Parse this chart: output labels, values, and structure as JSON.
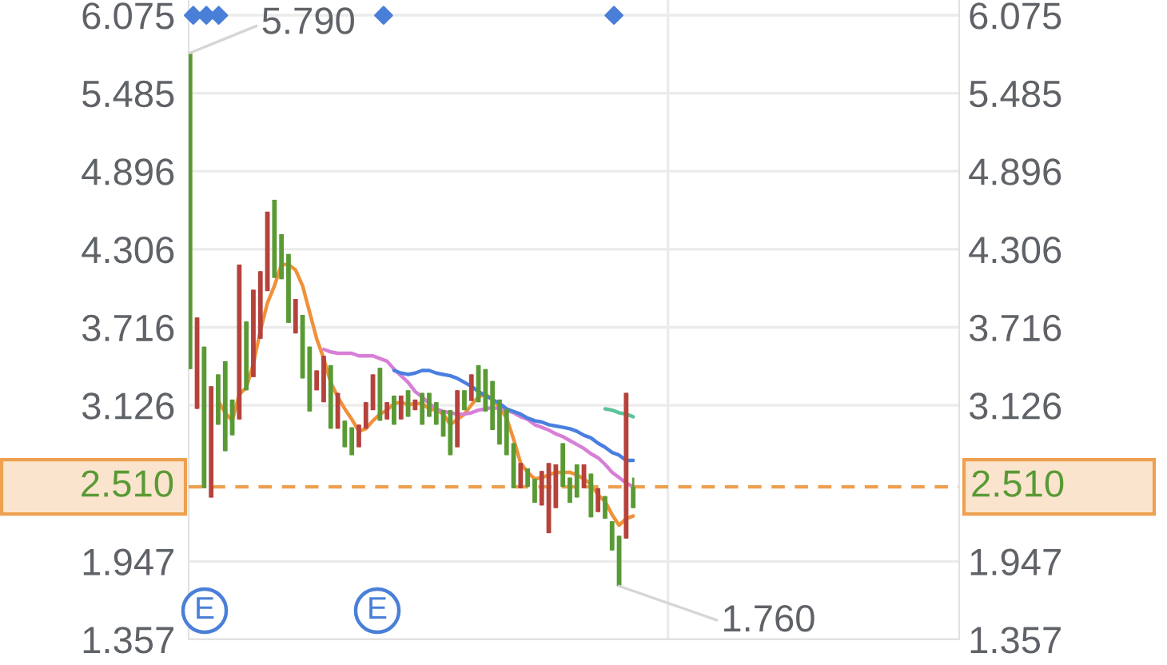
{
  "chart_data": {
    "type": "candlestick",
    "categories": [
      null,
      null,
      null,
      null,
      null,
      null,
      null,
      null,
      null,
      null,
      null,
      null,
      null,
      null,
      null,
      null,
      null,
      null,
      null,
      null,
      null,
      null,
      null,
      null,
      null,
      null,
      null,
      null,
      null,
      null,
      null,
      null,
      null,
      null,
      null,
      null,
      null,
      null,
      null,
      null,
      null,
      null,
      null,
      null,
      null,
      null,
      null,
      null,
      null,
      null,
      null,
      null,
      null,
      null,
      null,
      null,
      null,
      null,
      null,
      null,
      null,
      null,
      null,
      null
    ],
    "ohlc": [
      [
        3.4,
        5.79,
        3.4,
        5.79
      ],
      [
        3.79,
        3.79,
        3.1,
        3.1
      ],
      [
        2.5,
        3.57,
        2.5,
        3.57
      ],
      [
        3.27,
        3.27,
        2.43,
        2.43
      ],
      [
        2.98,
        3.36,
        2.98,
        3.36
      ],
      [
        2.78,
        3.46,
        2.78,
        3.46
      ],
      [
        2.9,
        3.17,
        2.9,
        3.17
      ],
      [
        4.19,
        4.19,
        3.02,
        3.02
      ],
      [
        3.24,
        3.76,
        3.24,
        3.76
      ],
      [
        4.0,
        4.0,
        3.34,
        3.34
      ],
      [
        4.14,
        4.14,
        3.63,
        3.63
      ],
      [
        4.59,
        4.59,
        3.99,
        3.99
      ],
      [
        4.09,
        4.68,
        4.09,
        4.68
      ],
      [
        4.08,
        4.42,
        4.08,
        4.42
      ],
      [
        3.75,
        4.27,
        3.75,
        4.27
      ],
      [
        3.93,
        3.93,
        3.67,
        3.67
      ],
      [
        3.33,
        3.81,
        3.33,
        3.81
      ],
      [
        3.08,
        3.57,
        3.08,
        3.57
      ],
      [
        3.39,
        3.39,
        3.24,
        3.24
      ],
      [
        3.5,
        3.5,
        3.15,
        3.15
      ],
      [
        2.95,
        3.43,
        2.95,
        3.43
      ],
      [
        3.22,
        3.22,
        2.95,
        2.95
      ],
      [
        2.81,
        3.01,
        2.81,
        3.01
      ],
      [
        2.75,
        2.96,
        2.75,
        2.96
      ],
      [
        2.98,
        2.98,
        2.81,
        2.81
      ],
      [
        3.15,
        3.15,
        2.95,
        2.95
      ],
      [
        3.36,
        3.36,
        3.09,
        3.09
      ],
      [
        3.01,
        3.41,
        3.01,
        3.41
      ],
      [
        3.15,
        3.15,
        3.02,
        3.02
      ],
      [
        2.98,
        3.2,
        2.98,
        3.2
      ],
      [
        3.2,
        3.2,
        3.02,
        3.02
      ],
      [
        3.04,
        3.24,
        3.04,
        3.24
      ],
      [
        3.17,
        3.17,
        3.09,
        3.09
      ],
      [
        2.98,
        3.22,
        2.98,
        3.22
      ],
      [
        3.04,
        3.22,
        3.04,
        3.22
      ],
      [
        2.98,
        3.15,
        2.98,
        3.15
      ],
      [
        2.89,
        3.09,
        2.89,
        3.09
      ],
      [
        2.75,
        3.09,
        2.75,
        3.09
      ],
      [
        3.24,
        3.24,
        2.81,
        2.81
      ],
      [
        3.09,
        3.24,
        3.09,
        3.24
      ],
      [
        3.36,
        3.36,
        3.16,
        3.16
      ],
      [
        3.15,
        3.43,
        3.15,
        3.43
      ],
      [
        3.08,
        3.4,
        3.08,
        3.4
      ],
      [
        2.94,
        3.31,
        2.94,
        3.31
      ],
      [
        2.83,
        3.17,
        2.83,
        3.17
      ],
      [
        2.75,
        3.1,
        2.75,
        3.1
      ],
      [
        2.5,
        2.84,
        2.5,
        2.84
      ],
      [
        2.69,
        2.69,
        2.5,
        2.5
      ],
      [
        2.51,
        2.65,
        2.51,
        2.65
      ],
      [
        2.39,
        2.57,
        2.39,
        2.57
      ],
      [
        2.63,
        2.63,
        2.37,
        2.37
      ],
      [
        2.69,
        2.69,
        2.16,
        2.16
      ],
      [
        2.68,
        2.68,
        2.35,
        2.35
      ],
      [
        2.51,
        2.84,
        2.51,
        2.84
      ],
      [
        2.39,
        2.58,
        2.39,
        2.58
      ],
      [
        2.43,
        2.68,
        2.43,
        2.68
      ],
      [
        2.68,
        2.68,
        2.5,
        2.5
      ],
      [
        2.28,
        2.61,
        2.28,
        2.61
      ],
      [
        2.5,
        2.5,
        2.32,
        2.32
      ],
      [
        2.27,
        2.44,
        2.27,
        2.44
      ],
      [
        2.03,
        2.25,
        2.03,
        2.25
      ],
      [
        1.76,
        2.14,
        1.76,
        2.14
      ],
      [
        3.22,
        3.22,
        2.12,
        2.12
      ],
      [
        2.35,
        2.58,
        2.35,
        2.51
      ]
    ],
    "colors": [
      "#5a9a35",
      "#b5423b",
      "#5a9a35",
      "#b5423b",
      "#5a9a35",
      "#5a9a35",
      "#5a9a35",
      "#b5423b",
      "#5a9a35",
      "#b5423b",
      "#b5423b",
      "#b5423b",
      "#5a9a35",
      "#5a9a35",
      "#5a9a35",
      "#b5423b",
      "#5a9a35",
      "#5a9a35",
      "#b5423b",
      "#b5423b",
      "#5a9a35",
      "#b5423b",
      "#5a9a35",
      "#5a9a35",
      "#b5423b",
      "#b5423b",
      "#b5423b",
      "#5a9a35",
      "#b5423b",
      "#5a9a35",
      "#b5423b",
      "#5a9a35",
      "#b5423b",
      "#5a9a35",
      "#5a9a35",
      "#5a9a35",
      "#5a9a35",
      "#5a9a35",
      "#b5423b",
      "#5a9a35",
      "#b5423b",
      "#5a9a35",
      "#5a9a35",
      "#5a9a35",
      "#5a9a35",
      "#5a9a35",
      "#5a9a35",
      "#b5423b",
      "#5a9a35",
      "#5a9a35",
      "#b5423b",
      "#b5423b",
      "#b5423b",
      "#5a9a35",
      "#5a9a35",
      "#5a9a35",
      "#b5423b",
      "#5a9a35",
      "#b5423b",
      "#5a9a35",
      "#5a9a35",
      "#5a9a35",
      "#b5423b",
      "#5a9a35"
    ],
    "series": [
      {
        "type": "line",
        "color": "#f0913a",
        "values": [
          null,
          null,
          null,
          null,
          3.16,
          3.07,
          3.01,
          3.21,
          3.26,
          3.44,
          3.69,
          3.9,
          4.03,
          4.19,
          4.19,
          4.15,
          4.03,
          3.83,
          3.63,
          3.48,
          3.3,
          3.19,
          3.1,
          3.02,
          2.93,
          2.95,
          3.01,
          3.06,
          3.09,
          3.14,
          3.15,
          3.13,
          3.14,
          3.14,
          3.1,
          3.09,
          3.06,
          2.98,
          3.02,
          3.06,
          3.13,
          3.19,
          3.21,
          3.17,
          3.11,
          3.03,
          2.87,
          2.69,
          2.62,
          2.57,
          2.58,
          2.6,
          2.62,
          2.62,
          2.62,
          2.6,
          2.57,
          2.53,
          2.45,
          2.4,
          2.3,
          2.22,
          2.27,
          2.29
        ]
      },
      {
        "type": "line",
        "color": "#d77fd6",
        "values": [
          null,
          null,
          null,
          null,
          null,
          null,
          null,
          null,
          null,
          null,
          null,
          null,
          null,
          null,
          null,
          null,
          null,
          null,
          null,
          3.55,
          3.53,
          3.52,
          3.52,
          3.52,
          3.5,
          3.5,
          3.5,
          3.48,
          3.46,
          3.4,
          3.35,
          3.3,
          3.23,
          3.19,
          3.14,
          3.1,
          3.08,
          3.07,
          3.06,
          3.06,
          3.07,
          3.09,
          3.1,
          3.11,
          3.1,
          3.09,
          3.07,
          3.04,
          3.02,
          2.98,
          2.96,
          2.94,
          2.91,
          2.89,
          2.86,
          2.83,
          2.8,
          2.76,
          2.73,
          2.68,
          2.62,
          2.58,
          2.54,
          2.51
        ]
      },
      {
        "type": "line",
        "color": "#4a7fe0",
        "values": [
          null,
          null,
          null,
          null,
          null,
          null,
          null,
          null,
          null,
          null,
          null,
          null,
          null,
          null,
          null,
          null,
          null,
          null,
          null,
          null,
          null,
          null,
          null,
          null,
          null,
          null,
          null,
          null,
          null,
          3.39,
          3.37,
          3.36,
          3.37,
          3.39,
          3.39,
          3.37,
          3.36,
          3.35,
          3.33,
          3.3,
          3.27,
          3.23,
          3.2,
          3.17,
          3.14,
          3.1,
          3.08,
          3.06,
          3.03,
          3.01,
          3.0,
          2.98,
          2.97,
          2.96,
          2.95,
          2.93,
          2.9,
          2.88,
          2.84,
          2.81,
          2.77,
          2.75,
          2.71,
          2.71
        ]
      },
      {
        "type": "line",
        "color": "#5cc49a",
        "values": [
          null,
          null,
          null,
          null,
          null,
          null,
          null,
          null,
          null,
          null,
          null,
          null,
          null,
          null,
          null,
          null,
          null,
          null,
          null,
          null,
          null,
          null,
          null,
          null,
          null,
          null,
          null,
          null,
          null,
          null,
          null,
          null,
          null,
          null,
          null,
          null,
          null,
          null,
          null,
          null,
          null,
          null,
          null,
          null,
          null,
          null,
          null,
          null,
          null,
          null,
          null,
          null,
          null,
          null,
          null,
          null,
          null,
          null,
          null,
          3.1,
          3.09,
          3.07,
          3.06,
          3.04
        ]
      }
    ],
    "ylim": [
      1.357,
      6.19
    ],
    "yticks": [
      1.357,
      1.947,
      3.126,
      3.716,
      4.306,
      4.896,
      5.485,
      6.075
    ],
    "y2lim": [
      1.357,
      6.19
    ],
    "y2ticks": [
      1.357,
      1.947,
      3.126,
      3.716,
      4.306,
      4.896,
      5.485,
      6.075
    ],
    "grid": "y",
    "ref_lines": [
      {
        "axis": "y",
        "value": 2.51,
        "label": "2.510",
        "color": "#eda04f",
        "line_style": "dashed"
      }
    ],
    "annotations": [
      "5.790",
      "1.760",
      "E",
      "E"
    ]
  }
}
